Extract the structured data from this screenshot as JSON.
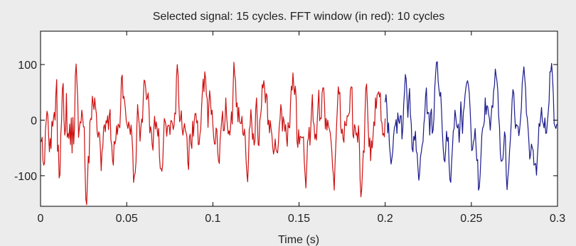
{
  "chart_data": {
    "type": "line",
    "title": "Selected signal: 15 cycles. FFT window (in red): 10 cycles",
    "xlabel": "Time (s)",
    "ylabel": "",
    "xlim": [
      0,
      0.3
    ],
    "ylim": [
      -155,
      160
    ],
    "x_ticks": [
      0,
      0.05,
      0.1,
      0.15,
      0.2,
      0.25,
      0.3
    ],
    "x_tick_labels": [
      "0",
      "0.05",
      "0.1",
      "0.15",
      "0.2",
      "0.25",
      "0.3"
    ],
    "y_ticks": [
      100,
      0,
      -100
    ],
    "y_tick_labels": [
      "100",
      "0",
      "-100"
    ],
    "grid": false,
    "sample_interval": 0.0005,
    "series": [
      {
        "color": "#cc1111",
        "x_start": 0,
        "x_end": 0.2,
        "values": [
          -39,
          -38,
          -31,
          -73,
          -81,
          -77,
          -19,
          -2,
          16,
          9,
          -28,
          -57,
          -33,
          -51,
          -2,
          -11,
          3,
          14,
          0,
          48,
          73,
          -56,
          -45,
          -104,
          -98,
          -28,
          -1,
          56,
          66,
          0,
          -27,
          -16,
          48,
          -31,
          -24,
          -33,
          -7,
          -44,
          4,
          -59,
          5,
          -43,
          -15,
          80,
          101,
          69,
          38,
          -31,
          -14,
          -3,
          -5,
          18,
          6,
          -12,
          -12,
          -86,
          -142,
          -152,
          -110,
          -65,
          -77,
          -3,
          3,
          1,
          43,
          31,
          19,
          40,
          23,
          12,
          -22,
          -31,
          -21,
          -26,
          -53,
          -91,
          -56,
          -48,
          -13,
          -8,
          -21,
          -1,
          -5,
          8,
          -17,
          9,
          19,
          -36,
          -45,
          -72,
          -81,
          -38,
          -43,
          -36,
          -10,
          -26,
          -7,
          -10,
          -14,
          21,
          76,
          81,
          39,
          43,
          33,
          18,
          -2,
          -8,
          -15,
          -3,
          -12,
          -26,
          -9,
          -30,
          -56,
          -112,
          -100,
          -95,
          -75,
          -15,
          28,
          7,
          -7,
          -38,
          -14,
          2,
          -4,
          39,
          72,
          70,
          58,
          37,
          40,
          49,
          26,
          -23,
          -12,
          -21,
          -44,
          -54,
          -14,
          7,
          -16,
          -3,
          -14,
          -29,
          -15,
          -65,
          -87,
          -87,
          -92,
          -80,
          -34,
          3,
          -2,
          -9,
          -29,
          -11,
          -9,
          -10,
          -26,
          -1,
          -1,
          -6,
          -17,
          -10,
          13,
          11,
          76,
          100,
          82,
          27,
          -3,
          1,
          17,
          -15,
          -27,
          -15,
          -6,
          -18,
          -23,
          -31,
          -75,
          -89,
          -31,
          -25,
          -43,
          -51,
          -2,
          -29,
          -2,
          12,
          12,
          -5,
          -1,
          -44,
          -44,
          -26,
          -16,
          20,
          50,
          74,
          51,
          87,
          75,
          45,
          39,
          -13,
          27,
          53,
          37,
          10,
          18,
          -8,
          -30,
          -43,
          -43,
          -14,
          -18,
          -57,
          -73,
          -78,
          -35,
          -18,
          0,
          16,
          -19,
          -19,
          -2,
          40,
          8,
          -12,
          -25,
          -19,
          -27,
          -10,
          15,
          -7,
          55,
          104,
          82,
          71,
          24,
          31,
          -3,
          23,
          -2,
          -6,
          -6,
          7,
          -24,
          -28,
          -16,
          -31,
          -70,
          -95,
          -111,
          -75,
          -17,
          -11,
          19,
          -3,
          -35,
          -24,
          -45,
          -37,
          20,
          40,
          -3,
          -44,
          -46,
          -1,
          8,
          22,
          64,
          58,
          71,
          57,
          31,
          48,
          43,
          -8,
          0,
          -23,
          -1,
          -16,
          -27,
          -49,
          -61,
          -53,
          -34,
          -52,
          -57,
          -59,
          -42,
          -12,
          1,
          28,
          16,
          -20,
          6,
          -2,
          -20,
          -8,
          -32,
          -47,
          -4,
          -13,
          -14,
          30,
          61,
          54,
          85,
          61,
          46,
          61,
          38,
          -38,
          -49,
          -17,
          -43,
          -29,
          -30,
          -32,
          -31,
          -30,
          -75,
          -98,
          -122,
          -86,
          -39,
          -33,
          -13,
          -45,
          -15,
          19,
          46,
          -3,
          -7,
          -34,
          -25,
          -36,
          -2,
          27,
          54,
          -1,
          4,
          3,
          49,
          58,
          58,
          30,
          -16,
          3,
          -18,
          0,
          -11,
          -16,
          -22,
          -36,
          -55,
          -85,
          -98,
          -126,
          -79,
          -44,
          -7,
          25,
          60,
          47,
          50,
          -12,
          -24,
          -16,
          -34,
          -40,
          -2,
          -9,
          -10,
          8,
          7,
          10,
          15,
          55,
          60,
          59,
          -26,
          -32,
          -8,
          -13,
          -27,
          -23,
          -40,
          -10,
          -36,
          -107,
          -138,
          -124,
          -89,
          -55,
          -58,
          8,
          56,
          65,
          30,
          -14,
          -48,
          -32,
          -73,
          -37,
          -50,
          -28,
          -3,
          -10,
          40,
          21,
          45,
          48,
          51,
          42,
          49,
          -1,
          -5,
          -27,
          -24,
          -30,
          3
        ]
      },
      {
        "color": "#1a1a8c",
        "x_start": 0.2,
        "x_end": 0.3,
        "values": [
          32,
          46,
          24,
          -23,
          -5,
          -44,
          -61,
          -79,
          -69,
          -56,
          -28,
          -13,
          -9,
          1,
          -24,
          13,
          -1,
          -6,
          8,
          8,
          -34,
          -14,
          27,
          52,
          82,
          73,
          40,
          5,
          37,
          57,
          10,
          -6,
          -51,
          -57,
          -29,
          -36,
          -20,
          -56,
          -60,
          -86,
          -108,
          -95,
          -66,
          -57,
          -45,
          -39,
          -8,
          7,
          42,
          58,
          11,
          14,
          13,
          -27,
          11,
          20,
          -24,
          -18,
          4,
          58,
          83,
          104,
          105,
          70,
          55,
          43,
          50,
          18,
          -21,
          -50,
          -71,
          -75,
          -52,
          -20,
          -38,
          -31,
          -79,
          -107,
          -112,
          -77,
          -50,
          -20,
          -15,
          18,
          6,
          -10,
          -14,
          -7,
          -40,
          -10,
          33,
          6,
          -24,
          14,
          24,
          45,
          58,
          67,
          71,
          63,
          49,
          21,
          -15,
          -55,
          -52,
          -39,
          -33,
          -15,
          -46,
          -73,
          -71,
          -126,
          -121,
          -97,
          -62,
          -26,
          -14,
          -11,
          -2,
          40,
          10,
          26,
          24,
          11,
          3,
          -18,
          6,
          26,
          23,
          53,
          62,
          92,
          80,
          70,
          52,
          7,
          -12,
          -60,
          -74,
          -73,
          -70,
          -49,
          -21,
          -30,
          -98,
          -125,
          -102,
          -85,
          -55,
          -33,
          -4,
          36,
          55,
          48,
          11,
          -15,
          -8,
          -10,
          -11,
          -28,
          -16,
          2,
          22,
          66,
          81,
          96,
          76,
          57,
          12,
          4,
          -15,
          -40,
          -70,
          -62,
          -43,
          -50,
          -54,
          -81,
          -79,
          -78,
          -99,
          -67,
          -42,
          -6,
          -11,
          5,
          23,
          -2,
          -6,
          -14,
          4,
          -24,
          -23,
          -3,
          15,
          34,
          87,
          87,
          102,
          78,
          47,
          -6,
          -11,
          -15,
          -8,
          -7
        ]
      }
    ]
  }
}
